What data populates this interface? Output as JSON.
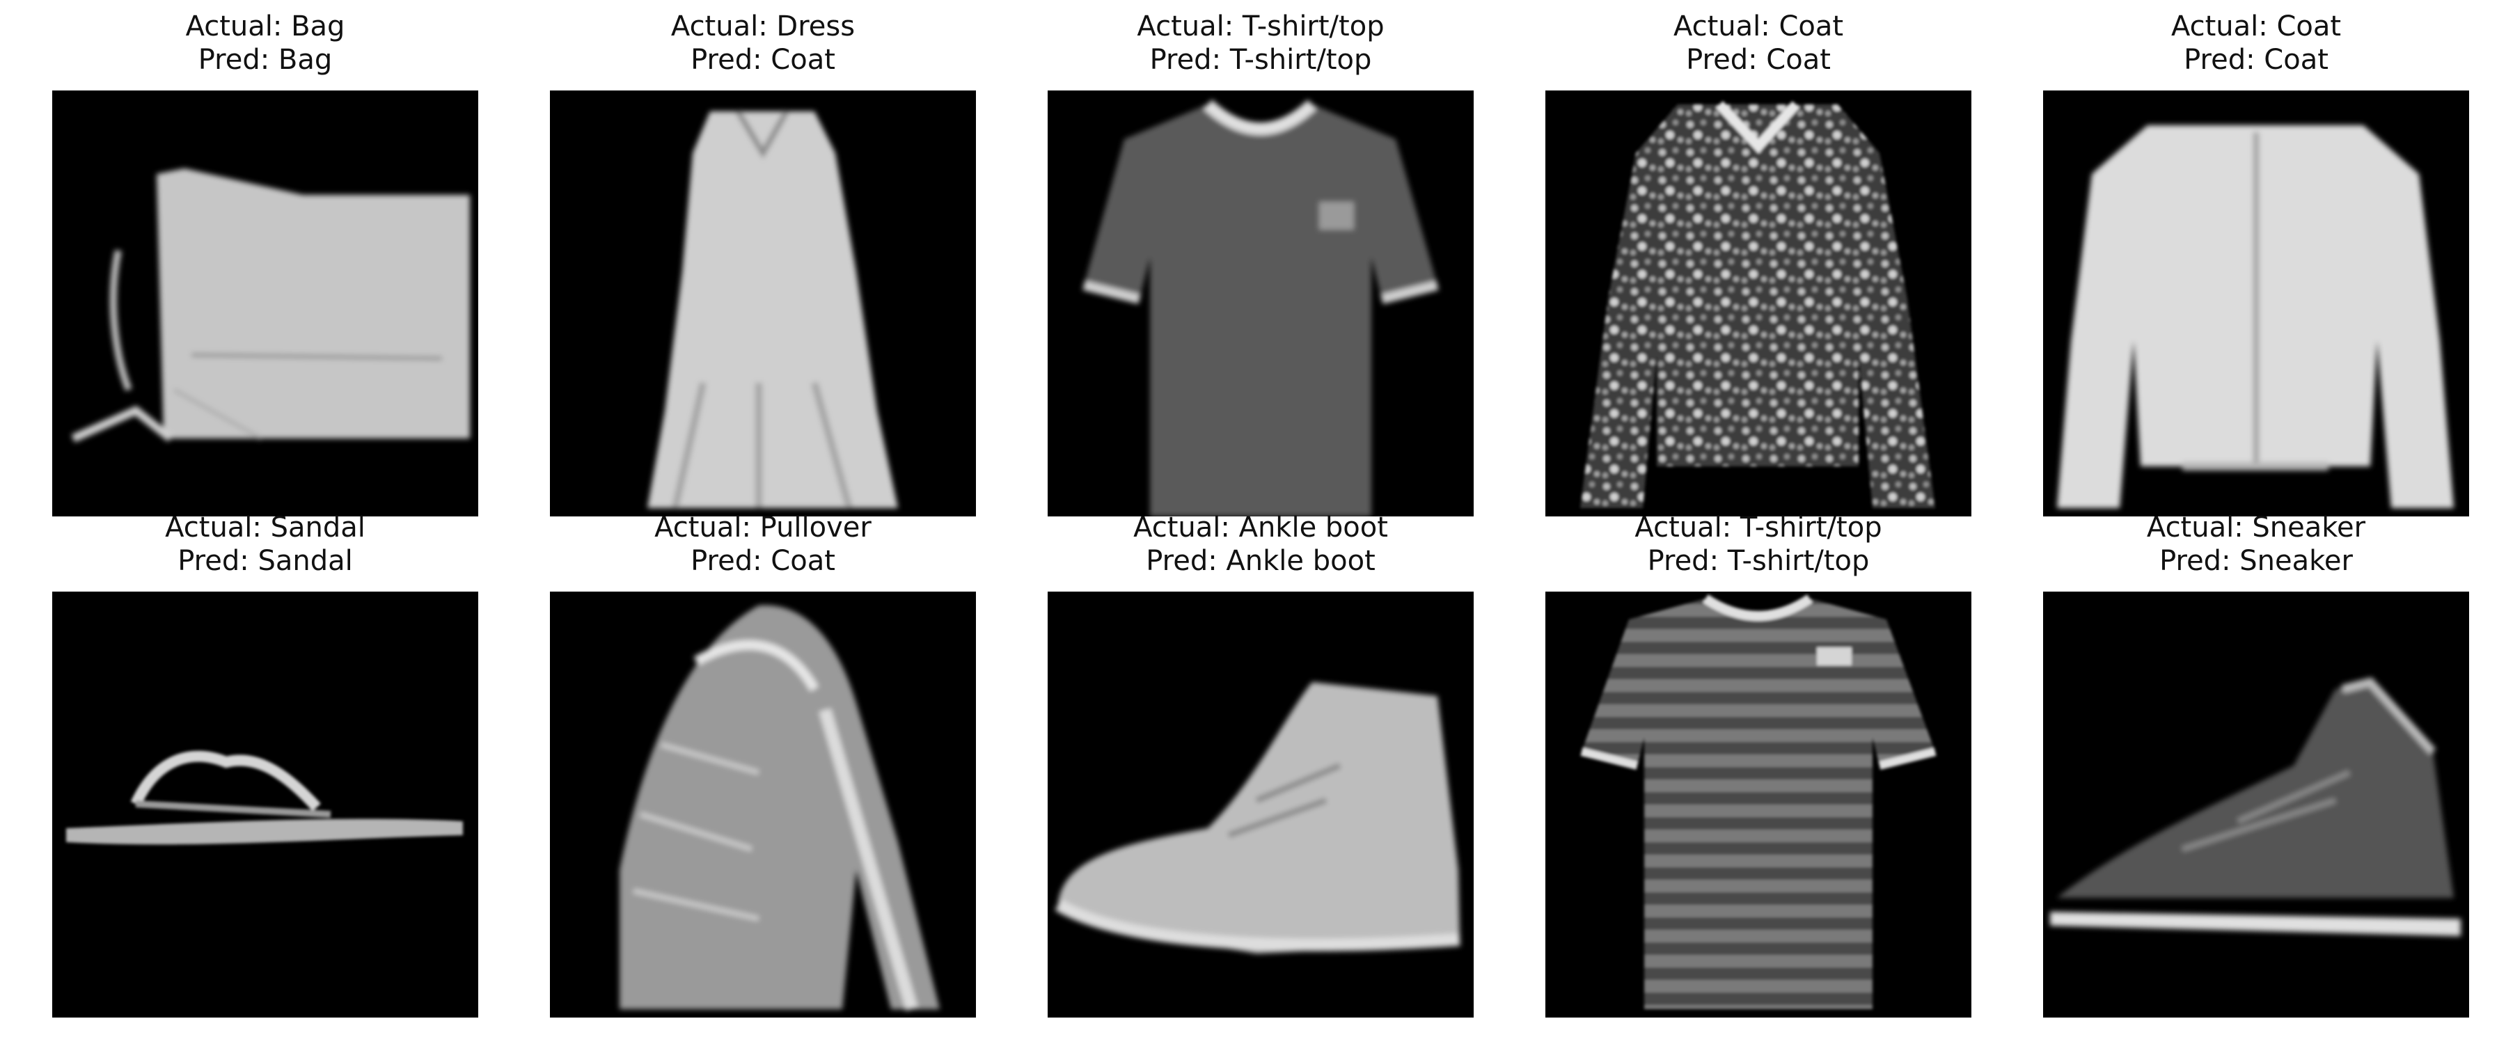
{
  "panels": [
    {
      "actual": "Actual: Bag",
      "pred": "Pred: Bag",
      "item": "bag"
    },
    {
      "actual": "Actual: Dress",
      "pred": "Pred: Coat",
      "item": "dress"
    },
    {
      "actual": "Actual: T-shirt/top",
      "pred": "Pred: T-shirt/top",
      "item": "tshirt-dark"
    },
    {
      "actual": "Actual: Coat",
      "pred": "Pred: Coat",
      "item": "coat-speckled"
    },
    {
      "actual": "Actual: Coat",
      "pred": "Pred: Coat",
      "item": "coat-white"
    },
    {
      "actual": "Actual: Sandal",
      "pred": "Pred: Sandal",
      "item": "sandal"
    },
    {
      "actual": "Actual: Pullover",
      "pred": "Pred: Coat",
      "item": "pullover"
    },
    {
      "actual": "Actual: Ankle boot",
      "pred": "Pred: Ankle boot",
      "item": "ankle-boot"
    },
    {
      "actual": "Actual: T-shirt/top",
      "pred": "Pred: T-shirt/top",
      "item": "tshirt-striped"
    },
    {
      "actual": "Actual: Sneaker",
      "pred": "Pred: Sneaker",
      "item": "sneaker"
    }
  ]
}
